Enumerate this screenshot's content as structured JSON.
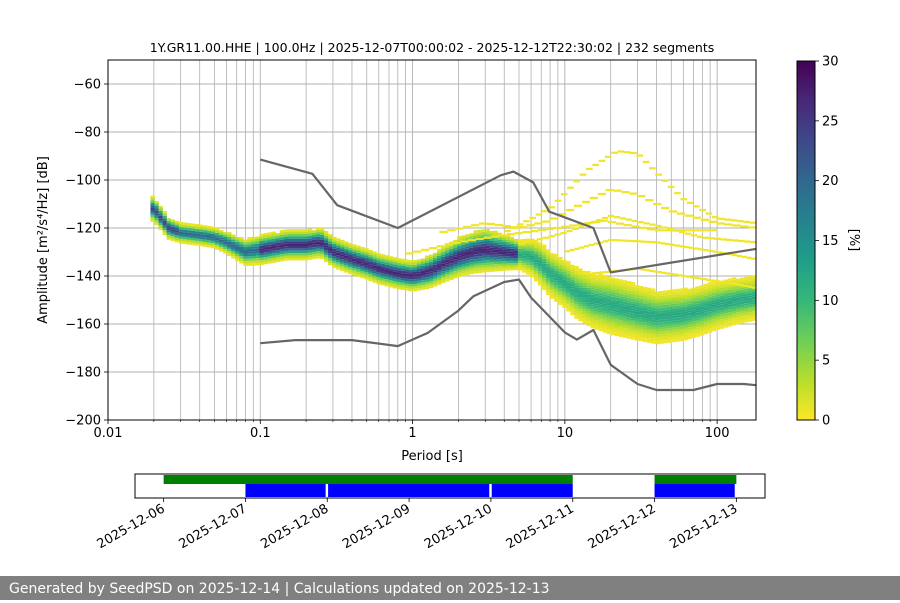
{
  "chart_data": {
    "type": "heatmap",
    "title": "1Y.GR11.00.HHE | 100.0Hz | 2025-12-07T00:00:02 - 2025-12-12T22:30:02 | 232 segments",
    "xlabel": "Period [s]",
    "ylabel": "Amplitude [m²/s⁴/Hz] [dB]",
    "xscale": "log",
    "xlim": [
      0.01,
      180
    ],
    "ylim": [
      -200,
      -50
    ],
    "x_ticks": [
      {
        "value": 0.01,
        "label": "0.01"
      },
      {
        "value": 0.1,
        "label": "0.1"
      },
      {
        "value": 1,
        "label": "1"
      },
      {
        "value": 10,
        "label": "10"
      },
      {
        "value": 100,
        "label": "100"
      }
    ],
    "y_ticks": [
      {
        "value": -60,
        "label": "−60"
      },
      {
        "value": -80,
        "label": "−80"
      },
      {
        "value": -100,
        "label": "−100"
      },
      {
        "value": -120,
        "label": "−120"
      },
      {
        "value": -140,
        "label": "−140"
      },
      {
        "value": -160,
        "label": "−160"
      },
      {
        "value": -180,
        "label": "−180"
      },
      {
        "value": -200,
        "label": "−200"
      }
    ],
    "grid": true,
    "colorbar": {
      "label": "[%]",
      "range": [
        0,
        30
      ],
      "ticks": [
        {
          "value": 0,
          "label": "0"
        },
        {
          "value": 5,
          "label": "5"
        },
        {
          "value": 10,
          "label": "10"
        },
        {
          "value": 15,
          "label": "15"
        },
        {
          "value": 20,
          "label": "20"
        },
        {
          "value": 25,
          "label": "25"
        },
        {
          "value": 30,
          "label": "30"
        }
      ],
      "colormap": "viridis_r",
      "stops": [
        "#fde725",
        "#b5de2b",
        "#6ece58",
        "#35b779",
        "#1f9e89",
        "#26828e",
        "#31688e",
        "#3e4989",
        "#482878",
        "#440154"
      ]
    },
    "mode_curve": [
      [
        0.02,
        -112
      ],
      [
        0.025,
        -120
      ],
      [
        0.03,
        -122
      ],
      [
        0.04,
        -123
      ],
      [
        0.05,
        -124
      ],
      [
        0.06,
        -126
      ],
      [
        0.08,
        -130
      ],
      [
        0.1,
        -129
      ],
      [
        0.15,
        -127
      ],
      [
        0.2,
        -127
      ],
      [
        0.25,
        -126
      ],
      [
        0.3,
        -130
      ],
      [
        0.4,
        -133
      ],
      [
        0.5,
        -135
      ],
      [
        0.6,
        -137
      ],
      [
        0.8,
        -139
      ],
      [
        1,
        -140
      ],
      [
        1.3,
        -138
      ],
      [
        1.6,
        -135
      ],
      [
        2,
        -132
      ],
      [
        2.5,
        -130
      ],
      [
        3,
        -129
      ],
      [
        4,
        -130
      ],
      [
        5,
        -131
      ],
      [
        6,
        -132
      ],
      [
        7,
        -135
      ],
      [
        8,
        -139
      ],
      [
        10,
        -143
      ],
      [
        12,
        -147
      ],
      [
        15,
        -150
      ],
      [
        20,
        -152
      ],
      [
        30,
        -155
      ],
      [
        40,
        -157
      ],
      [
        60,
        -156
      ],
      [
        80,
        -154
      ],
      [
        100,
        -152
      ],
      [
        140,
        -150
      ],
      [
        180,
        -149
      ]
    ],
    "band_halfwidth": [
      [
        0.02,
        5
      ],
      [
        0.03,
        4
      ],
      [
        0.05,
        4
      ],
      [
        0.1,
        6
      ],
      [
        0.2,
        6
      ],
      [
        0.5,
        6
      ],
      [
        1,
        6
      ],
      [
        2,
        8
      ],
      [
        3,
        9
      ],
      [
        5,
        6
      ],
      [
        7,
        9
      ],
      [
        10,
        10
      ],
      [
        20,
        12
      ],
      [
        40,
        11
      ],
      [
        100,
        10
      ],
      [
        180,
        9
      ]
    ],
    "scatter_tracks": [
      {
        "points": [
          [
            1.5,
            -122
          ],
          [
            3,
            -118
          ],
          [
            5,
            -120
          ],
          [
            8,
            -117
          ],
          [
            12,
            -111
          ],
          [
            20,
            -104
          ],
          [
            30,
            -106
          ],
          [
            50,
            -113
          ],
          [
            100,
            -118
          ],
          [
            180,
            -120
          ]
        ]
      },
      {
        "points": [
          [
            4,
            -122
          ],
          [
            8,
            -112
          ],
          [
            14,
            -96
          ],
          [
            22,
            -88
          ],
          [
            30,
            -89
          ],
          [
            40,
            -97
          ],
          [
            60,
            -108
          ],
          [
            100,
            -116
          ],
          [
            180,
            -118
          ]
        ]
      },
      {
        "points": [
          [
            5,
            -127
          ],
          [
            10,
            -122
          ],
          [
            20,
            -115
          ],
          [
            40,
            -119
          ],
          [
            80,
            -124
          ],
          [
            180,
            -126
          ]
        ]
      },
      {
        "points": [
          [
            0.9,
            -131
          ],
          [
            2,
            -126
          ],
          [
            4,
            -123
          ],
          [
            9,
            -120
          ],
          [
            18,
            -117
          ],
          [
            40,
            -121
          ],
          [
            100,
            -121
          ]
        ]
      },
      {
        "points": [
          [
            10,
            -130
          ],
          [
            20,
            -125
          ],
          [
            40,
            -126
          ],
          [
            100,
            -130
          ],
          [
            180,
            -133
          ]
        ]
      },
      {
        "points": [
          [
            15,
            -139
          ],
          [
            30,
            -137
          ],
          [
            60,
            -140
          ],
          [
            120,
            -143
          ],
          [
            180,
            -145
          ]
        ]
      }
    ],
    "reference_curves": [
      {
        "name": "upper-noise-model",
        "points": [
          [
            0.1,
            -91.5
          ],
          [
            0.22,
            -97.4
          ],
          [
            0.32,
            -110.5
          ],
          [
            0.8,
            -120
          ],
          [
            3.8,
            -98
          ],
          [
            4.6,
            -96.5
          ],
          [
            6.2,
            -101
          ],
          [
            7.9,
            -113.2
          ],
          [
            15.4,
            -120
          ],
          [
            20,
            -138.5
          ],
          [
            180,
            -128.7
          ]
        ]
      },
      {
        "points": [
          [
            0.1,
            -168
          ],
          [
            0.17,
            -166.7
          ],
          [
            0.4,
            -166.7
          ],
          [
            0.8,
            -169.2
          ],
          [
            1.26,
            -163.7
          ],
          [
            2,
            -154.4
          ],
          [
            2.5,
            -148.5
          ],
          [
            4,
            -142.5
          ],
          [
            5,
            -141.5
          ],
          [
            6,
            -149
          ],
          [
            10,
            -163.5
          ],
          [
            12,
            -166.5
          ],
          [
            15.4,
            -162.5
          ],
          [
            20,
            -177
          ],
          [
            30,
            -185
          ],
          [
            40,
            -187.5
          ],
          [
            70,
            -187.5
          ],
          [
            100,
            -185
          ],
          [
            150,
            -185
          ],
          [
            180,
            -185.5
          ]
        ],
        "name": "lower-noise-model"
      }
    ],
    "timeline": {
      "date_ticks": [
        "2025-12-06",
        "2025-12-07",
        "2025-12-08",
        "2025-12-09",
        "2025-12-10",
        "2025-12-11",
        "2025-12-12",
        "2025-12-13"
      ],
      "range_days": [
        -0.35,
        7.35
      ],
      "green_bar": {
        "color": "#008000",
        "spans": [
          [
            0,
            5
          ],
          [
            6,
            7
          ]
        ]
      },
      "blue_bar": {
        "color": "#0000ff",
        "spans": [
          [
            1,
            1.98
          ],
          [
            2.01,
            3.98
          ],
          [
            4.01,
            5
          ],
          [
            6,
            6.98
          ]
        ]
      }
    },
    "curve_color": "#666666"
  },
  "footer": {
    "text": "Generated by SeedPSD on 2025-12-14 | Calculations updated on 2025-12-13",
    "background": "#808080"
  }
}
